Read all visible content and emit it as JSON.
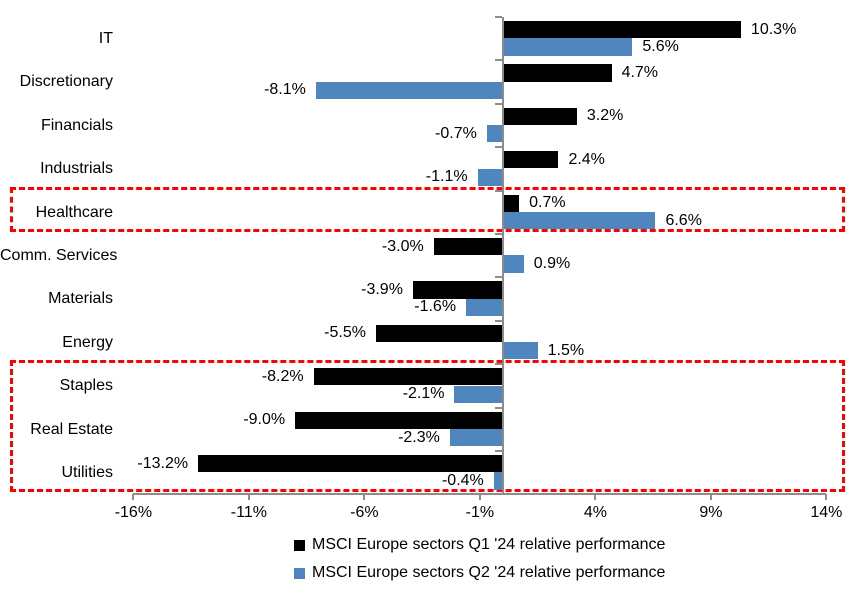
{
  "chart_data": {
    "type": "bar",
    "orientation": "horizontal",
    "title": "",
    "xlabel": "",
    "ylabel": "",
    "grid": false,
    "legend_position": "bottom",
    "categories": [
      "IT",
      "Discretionary",
      "Financials",
      "Industrials",
      "Healthcare",
      "Comm. Services",
      "Materials",
      "Energy",
      "Staples",
      "Real Estate",
      "Utilities"
    ],
    "series": [
      {
        "name": "MSCI Europe sectors Q1 '24 relative performance",
        "color": "#000000",
        "values": [
          10.3,
          4.7,
          3.2,
          2.4,
          0.7,
          -3.0,
          -3.9,
          -5.5,
          -8.2,
          -9.0,
          -13.2
        ],
        "labels": [
          "10.3%",
          "4.7%",
          "3.2%",
          "2.4%",
          "0.7%",
          "-3.0%",
          "-3.9%",
          "-5.5%",
          "-8.2%",
          "-9.0%",
          "-13.2%"
        ]
      },
      {
        "name": "MSCI Europe sectors Q2 '24 relative performance",
        "color": "#4f86bd",
        "values": [
          5.6,
          -8.1,
          -0.7,
          -1.1,
          6.6,
          0.9,
          -1.6,
          1.5,
          -2.1,
          -2.3,
          -0.4
        ],
        "labels": [
          "5.6%",
          "-8.1%",
          "-0.7%",
          "-1.1%",
          "6.6%",
          "0.9%",
          "-1.6%",
          "1.5%",
          "-2.1%",
          "-2.3%",
          "-0.4%"
        ]
      }
    ],
    "xlim": [
      -16,
      14
    ],
    "xticks": [
      -16,
      -11,
      -6,
      -1,
      4,
      9,
      14
    ],
    "xtick_labels": [
      "-16%",
      "-11%",
      "-6%",
      "-1%",
      "4%",
      "9%",
      "14%"
    ],
    "highlight_boxes": [
      {
        "from_category": "Healthcare",
        "to_category": "Healthcare",
        "color": "#ff0000"
      },
      {
        "from_category": "Staples",
        "to_category": "Utilities",
        "color": "#ff0000"
      }
    ],
    "axis_color": "#8c8c8c",
    "background_color": "#ffffff"
  }
}
